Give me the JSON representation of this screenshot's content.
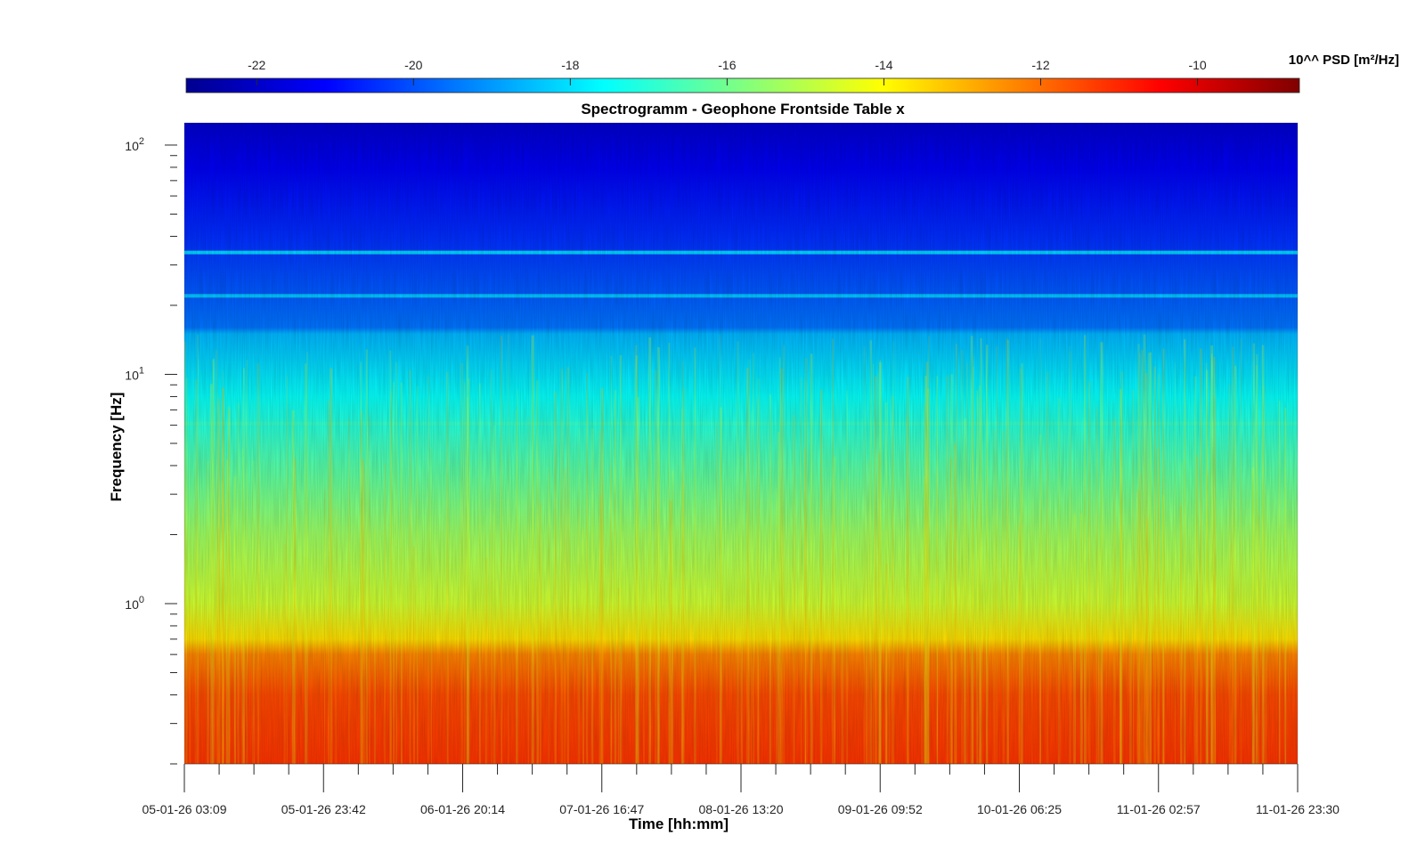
{
  "chart_data": {
    "type": "heatmap",
    "title": "Spectrogramm - Geophone Frontside Table x",
    "xlabel": "Time [hh:mm]",
    "ylabel": "Frequency [Hz]",
    "y_scale": "log",
    "ylim": [
      0.2,
      125
    ],
    "y_tick_values": [
      1,
      10,
      100
    ],
    "y_tick_labels": [
      {
        "base": "10",
        "exp": "0"
      },
      {
        "base": "10",
        "exp": "1"
      },
      {
        "base": "10",
        "exp": "2"
      }
    ],
    "x_tick_labels": [
      "05-01-26 03:09",
      "05-01-26 23:42",
      "06-01-26 20:14",
      "07-01-26 16:47",
      "08-01-26 13:20",
      "09-01-26 09:52",
      "10-01-26 06:25",
      "11-01-26 02:57",
      "11-01-26 23:30"
    ],
    "colorbar": {
      "label": "10^^ PSD [m²/Hz]",
      "range": [
        -22.9,
        -8.7
      ],
      "tick_values": [
        -22,
        -20,
        -18,
        -16,
        -14,
        -12,
        -10
      ],
      "tick_labels": [
        "-22",
        "-20",
        "-18",
        "-16",
        "-14",
        "-12",
        "-10"
      ],
      "colormap": "jet",
      "colormap_stops": [
        "#00008f",
        "#0000ff",
        "#0080ff",
        "#00ffff",
        "#80ff80",
        "#ffff00",
        "#ff8000",
        "#ff0000",
        "#800000"
      ]
    },
    "grid": false,
    "log10_psd_profile_by_frequency": [
      {
        "f_hz": 0.2,
        "psd": -11.2
      },
      {
        "f_hz": 0.4,
        "psd": -11.5
      },
      {
        "f_hz": 0.6,
        "psd": -12.3
      },
      {
        "f_hz": 0.7,
        "psd": -13.6
      },
      {
        "f_hz": 1.0,
        "psd": -14.7
      },
      {
        "f_hz": 2.0,
        "psd": -15.4
      },
      {
        "f_hz": 4.0,
        "psd": -16.4
      },
      {
        "f_hz": 8.0,
        "psd": -17.5
      },
      {
        "f_hz": 15.0,
        "psd": -18.6
      },
      {
        "f_hz": 16.0,
        "psd": -19.5
      },
      {
        "f_hz": 40.0,
        "psd": -20.5
      },
      {
        "f_hz": 80.0,
        "psd": -21.3
      },
      {
        "f_hz": 125.0,
        "psd": -21.9
      }
    ],
    "spectral_lines": [
      {
        "f_hz": 34,
        "psd": -17.6
      },
      {
        "f_hz": 22,
        "psd": -18.0
      },
      {
        "f_hz": 6.1,
        "psd": -16.8
      }
    ]
  }
}
